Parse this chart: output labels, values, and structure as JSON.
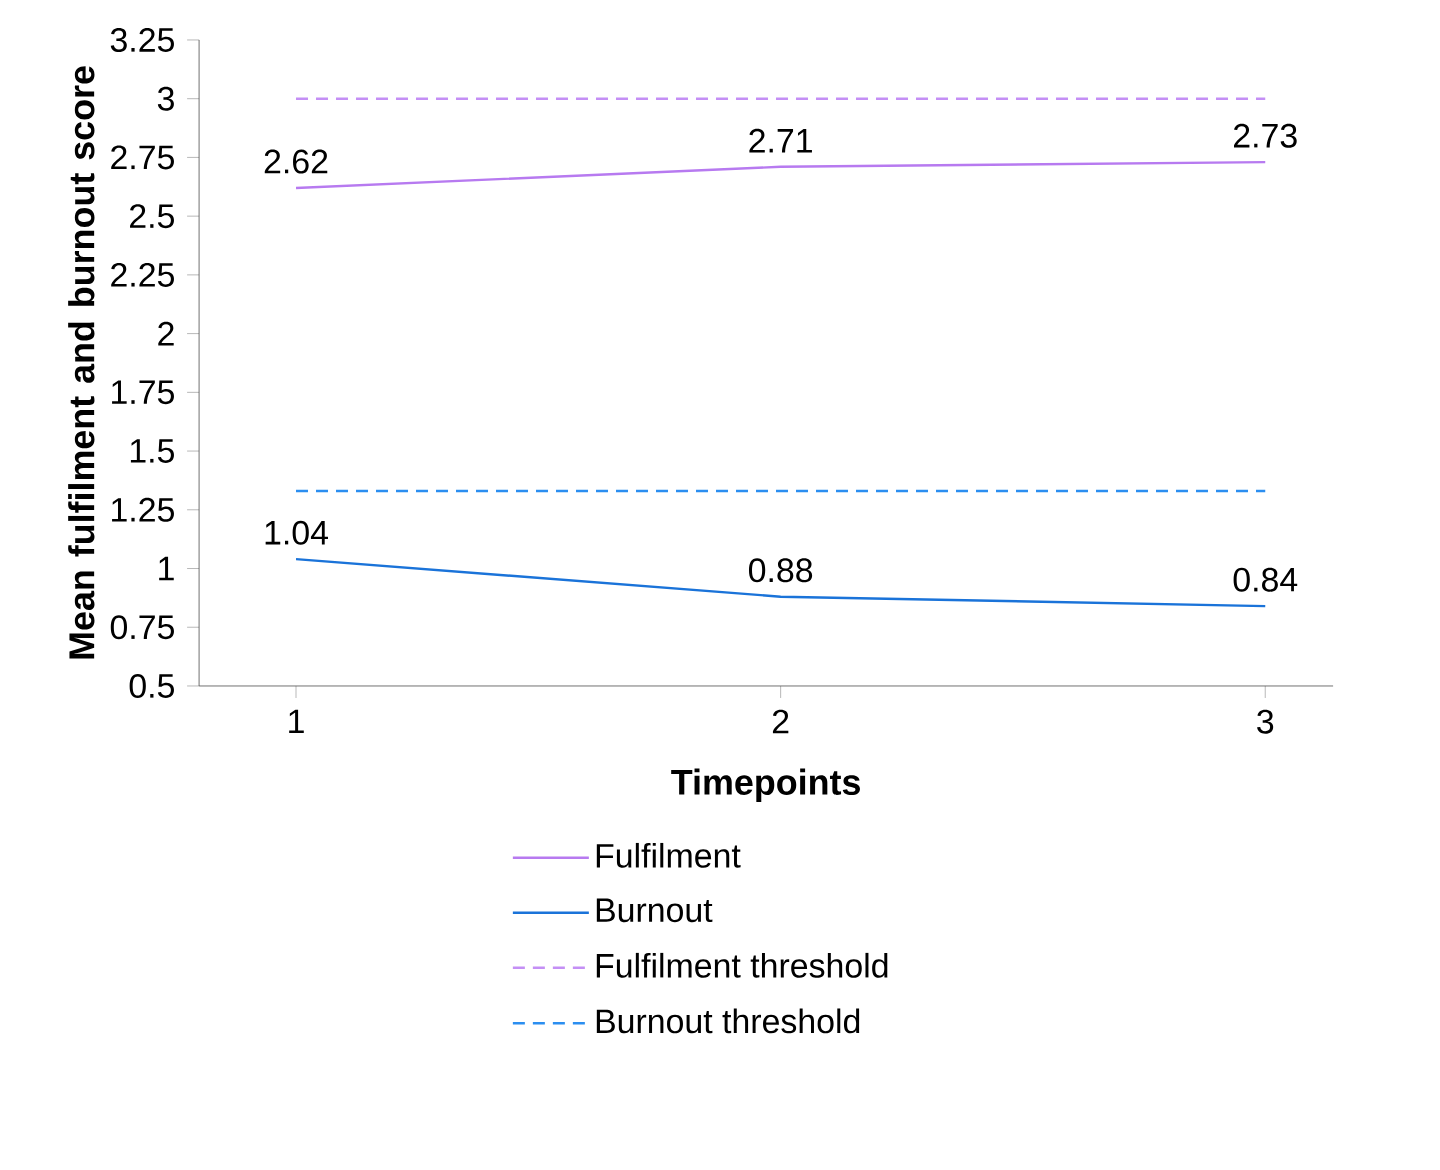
{
  "chart_data": {
    "type": "line",
    "xlabel": "Timepoints",
    "ylabel": "Mean fulfilment and burnout score",
    "categories": [
      "1",
      "2",
      "3"
    ],
    "series": [
      {
        "name": "Fulfilment",
        "color": "#b77af0",
        "values": [
          2.62,
          2.71,
          2.73
        ],
        "value_labels": [
          "2.62",
          "2.71",
          "2.73"
        ],
        "line_style": "solid"
      },
      {
        "name": "Burnout",
        "color": "#1a73d9",
        "values": [
          1.04,
          0.88,
          0.84
        ],
        "value_labels": [
          "1.04",
          "0.88",
          "0.84"
        ],
        "line_style": "solid"
      },
      {
        "name": "Fulfilment threshold",
        "color": "#c48ff5",
        "values": [
          3,
          3,
          3
        ],
        "line_style": "dashed"
      },
      {
        "name": "Burnout threshold",
        "color": "#2b8ef0",
        "values": [
          1.33,
          1.33,
          1.33
        ],
        "line_style": "dashed"
      }
    ],
    "ylim": [
      0.5,
      3.25
    ],
    "yticks": [
      0.5,
      0.75,
      1,
      1.25,
      1.5,
      1.75,
      2,
      2.25,
      2.5,
      2.75,
      3,
      3.25
    ],
    "grid": false,
    "legend": "bottom",
    "marker": "none"
  }
}
